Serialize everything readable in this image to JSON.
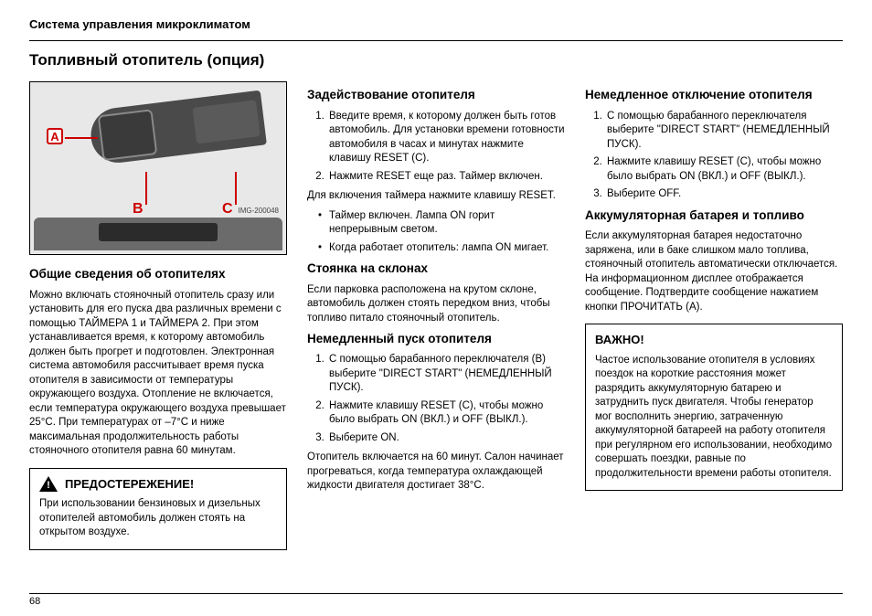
{
  "header": "Система управления микроклиматом",
  "title": "Топливный отопитель (опция)",
  "page_number": "68",
  "figure": {
    "markers": {
      "a": "A",
      "b": "B",
      "c": "C"
    },
    "img_id": "IMG-200048",
    "colors": {
      "marker_border": "#c00",
      "bg": "#e8e8e8",
      "lever": "#4a4a4a"
    }
  },
  "col1": {
    "h1": "Общие сведения об отопителях",
    "p1": "Можно включать стояночный отопитель сразу или установить для его пуска два различных времени с помощью ТАЙМЕРА 1 и ТАЙМЕРА 2. При этом устанавливается время, к которому автомобиль должен быть прогрет и подготовлен. Электронная система автомобиля рассчитывает время пуска отопителя в зависимости от температуры окружающего воздуха. Отопление не включается, если температура окружающего воздуха превышает 25°С. При температурах от –7°С и ниже максимальная продолжительность работы стояночного отопителя равна 60 минутам.",
    "warn_title": "ПРЕДОСТЕРЕЖЕНИЕ!",
    "warn_body": "При использовании бензиновых и дизельных отопителей автомобиль должен стоять на открытом воздухе."
  },
  "col2": {
    "h1": "Задействование отопителя",
    "ol1": [
      "Введите время, к которому должен быть готов автомобиль. Для установки времени готовности автомобиля в часах и минутах нажмите клавишу RESET (C).",
      "Нажмите RESET еще раз. Таймер включен."
    ],
    "p1": "Для включения таймера нажмите клавишу RESET.",
    "ul1": [
      "Таймер включен. Лампа ON горит непрерывным светом.",
      "Когда работает отопитель: лампа ON мигает."
    ],
    "h2": "Стоянка на склонах",
    "p2": "Если парковка расположена на крутом склоне, автомобиль должен стоять передком вниз, чтобы топливо питало стояночный отопитель.",
    "h3": "Немедленный пуск отопителя",
    "ol2": [
      "С помощью барабанного переключателя (B) выберите \"DIRECT START\" (НЕМЕДЛЕННЫЙ ПУСК).",
      "Нажмите клавишу RESET (C), чтобы можно было выбрать ON (ВКЛ.) и OFF (ВЫКЛ.).",
      "Выберите ON."
    ],
    "p3": "Отопитель включается на 60 минут. Салон начинает прогреваться, когда температура охлаждающей жидкости двигателя достигает 38°С."
  },
  "col3": {
    "h1": "Немедленное отключение отопителя",
    "ol1": [
      "С помощью барабанного переключателя выберите \"DIRECT START\" (НЕМЕДЛЕННЫЙ ПУСК).",
      "Нажмите клавишу RESET (C), чтобы можно было выбрать ON (ВКЛ.) и OFF (ВЫКЛ.).",
      "Выберите OFF."
    ],
    "h2": "Аккумуляторная батарея и топливо",
    "p1": "Если аккумуляторная батарея недостаточно заряжена, или в баке слишком мало топлива, стояночный отопитель автоматически отключается. На информационном дисплее отображается сообщение. Подтвердите сообщение нажатием кнопки ПРОЧИТАТЬ (A).",
    "important_title": "ВАЖНО!",
    "important_body": "Частое использование отопителя в условиях поездок на короткие расстояния может разрядить аккумуляторную батарею и затруднить пуск двигателя. Чтобы генератор мог восполнить энергию, затраченную аккумуляторной батареей на работу отопителя при регулярном его использовании, необходимо совершать поездки, равные по продолжительности времени работы отопителя."
  }
}
